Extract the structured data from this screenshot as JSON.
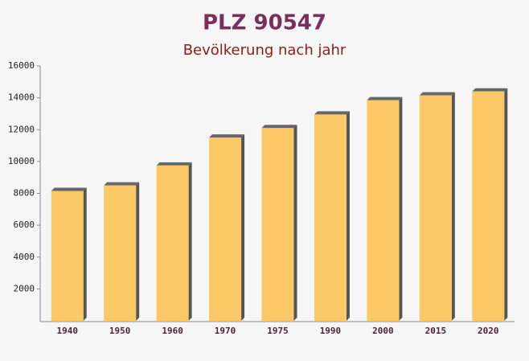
{
  "chart_data": {
    "type": "bar",
    "title": "PLZ 90547",
    "subtitle": "Bevölkerung nach jahr",
    "categories": [
      "1940",
      "1950",
      "1960",
      "1970",
      "1975",
      "1990",
      "2000",
      "2015",
      "2020"
    ],
    "values": [
      8150,
      8500,
      9750,
      11500,
      12100,
      12950,
      13850,
      14150,
      14400
    ],
    "color": "#fcc865",
    "ylim": [
      0,
      16000
    ],
    "yticks": [
      2000,
      4000,
      6000,
      8000,
      10000,
      12000,
      14000,
      16000
    ],
    "grid": false
  }
}
